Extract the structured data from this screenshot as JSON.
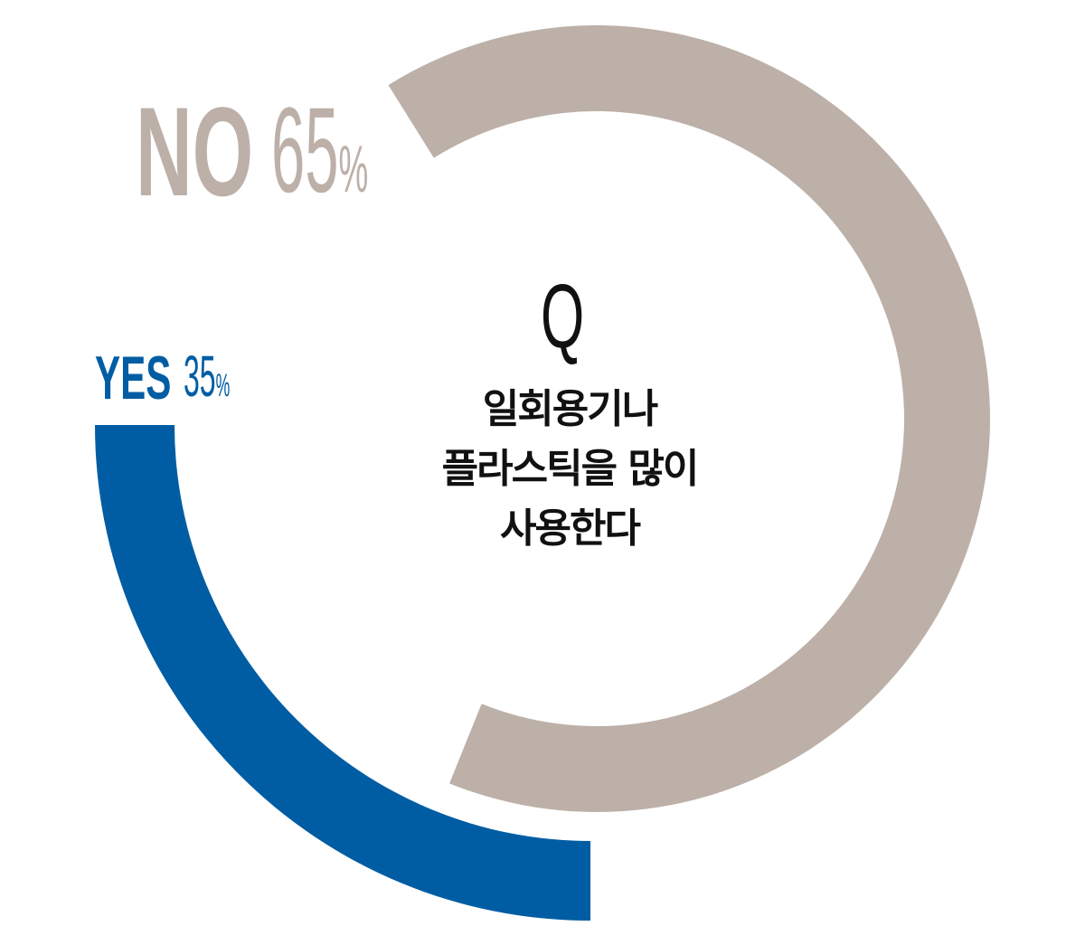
{
  "chart_data": {
    "type": "pie",
    "style": "donut",
    "question_mark": "Q",
    "question_lines": [
      "일회용기나",
      "플라스틱을 많이",
      "사용한다"
    ],
    "slices": [
      {
        "label": "NO",
        "value": 65,
        "display": "65",
        "unit": "%",
        "color": "#bcb0a8"
      },
      {
        "label": "YES",
        "value": 35,
        "display": "35",
        "unit": "%",
        "color": "#005da3"
      }
    ]
  }
}
